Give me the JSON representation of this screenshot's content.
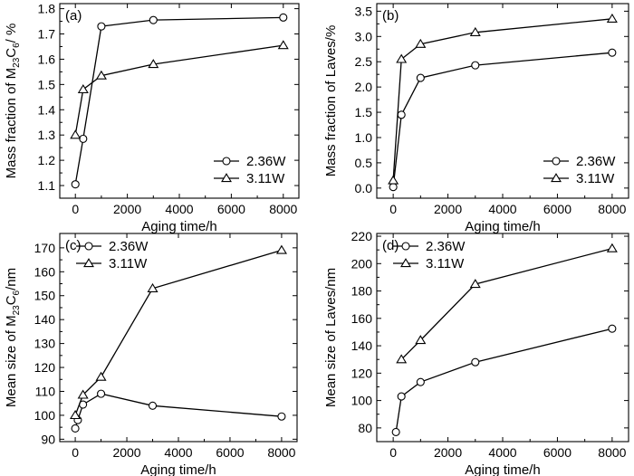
{
  "figure": {
    "chart_data": [
      {
        "type": "line",
        "panel": "(a)",
        "title": "",
        "xlabel": "Aging time/h",
        "ylabel_parts": [
          [
            "Mass fraction of M",
            "n"
          ],
          [
            "23",
            "sub"
          ],
          [
            "C",
            "n"
          ],
          [
            "6",
            "sub"
          ],
          [
            "/ %",
            "n"
          ]
        ],
        "xlim": [
          -600,
          8600
        ],
        "ylim": [
          1.05,
          1.82
        ],
        "xticks": [
          0,
          2000,
          4000,
          6000,
          8000
        ],
        "xtick_labels": [
          "0",
          "2000",
          "4000",
          "6000",
          "8000"
        ],
        "yticks": [
          1.1,
          1.2,
          1.3,
          1.4,
          1.5,
          1.6,
          1.7,
          1.8
        ],
        "ytick_labels": [
          "1.1",
          "1.2",
          "1.3",
          "1.4",
          "1.5",
          "1.6",
          "1.7",
          "1.8"
        ],
        "legend": "bottom-right",
        "series": [
          {
            "name": "2.36W",
            "marker": "circle",
            "x": [
              0,
              300,
              1000,
              3000,
              8000
            ],
            "y": [
              1.105,
              1.285,
              1.73,
              1.755,
              1.765
            ]
          },
          {
            "name": "3.11W",
            "marker": "triangle",
            "x": [
              0,
              300,
              1000,
              3000,
              8000
            ],
            "y": [
              1.3,
              1.48,
              1.535,
              1.58,
              1.655
            ]
          }
        ]
      },
      {
        "type": "line",
        "panel": "(b)",
        "title": "",
        "xlabel": "Aging time/h",
        "ylabel_parts": [
          [
            "Mass fraction of Laves/%",
            "n"
          ]
        ],
        "xlim": [
          -600,
          8600
        ],
        "ylim": [
          -0.2,
          3.65
        ],
        "xticks": [
          0,
          2000,
          4000,
          6000,
          8000
        ],
        "xtick_labels": [
          "0",
          "2000",
          "4000",
          "6000",
          "8000"
        ],
        "yticks": [
          0.0,
          0.5,
          1.0,
          1.5,
          2.0,
          2.5,
          3.0,
          3.5
        ],
        "ytick_labels": [
          "0.0",
          "0.5",
          "1.0",
          "1.5",
          "2.0",
          "2.5",
          "3.0",
          "3.5"
        ],
        "legend": "bottom-right",
        "series": [
          {
            "name": "2.36W",
            "marker": "circle",
            "x": [
              0,
              300,
              1000,
              3000,
              8000
            ],
            "y": [
              0.02,
              1.45,
              2.18,
              2.43,
              2.68
            ]
          },
          {
            "name": "3.11W",
            "marker": "triangle",
            "x": [
              0,
              300,
              1000,
              3000,
              8000
            ],
            "y": [
              0.15,
              2.55,
              2.85,
              3.08,
              3.35
            ]
          }
        ]
      },
      {
        "type": "line",
        "panel": "(c)",
        "title": "",
        "xlabel": "Aging time/h",
        "ylabel_parts": [
          [
            "Mean size of M",
            "n"
          ],
          [
            "23",
            "sub"
          ],
          [
            "C",
            "n"
          ],
          [
            "6",
            "sub"
          ],
          [
            "/nm",
            "n"
          ]
        ],
        "xlim": [
          -600,
          8600
        ],
        "ylim": [
          89,
          176
        ],
        "xticks": [
          0,
          2000,
          4000,
          6000,
          8000
        ],
        "xtick_labels": [
          "0",
          "2000",
          "4000",
          "6000",
          "8000"
        ],
        "yticks": [
          90,
          100,
          110,
          120,
          130,
          140,
          150,
          160,
          170
        ],
        "ytick_labels": [
          "90",
          "100",
          "110",
          "120",
          "130",
          "140",
          "150",
          "160",
          "170"
        ],
        "legend": "top-left",
        "series": [
          {
            "name": "2.36W",
            "marker": "circle",
            "x": [
              0,
              100,
              300,
              1000,
              3000,
              8000
            ],
            "y": [
              94.5,
              98.0,
              104.5,
              109.0,
              104.0,
              99.5
            ]
          },
          {
            "name": "3.11W",
            "marker": "triangle",
            "x": [
              0,
              300,
              1000,
              3000,
              8000
            ],
            "y": [
              100.0,
              108.5,
              116.0,
              153.0,
              169.0
            ]
          }
        ]
      },
      {
        "type": "line",
        "panel": "(d)",
        "title": "",
        "xlabel": "Aging time/h",
        "ylabel_parts": [
          [
            "Mean size of Laves/nm",
            "n"
          ]
        ],
        "xlim": [
          -600,
          8600
        ],
        "ylim": [
          70,
          222
        ],
        "xticks": [
          0,
          2000,
          4000,
          6000,
          8000
        ],
        "xtick_labels": [
          "0",
          "2000",
          "4000",
          "6000",
          "8000"
        ],
        "yticks": [
          80,
          100,
          120,
          140,
          160,
          180,
          200,
          220
        ],
        "ytick_labels": [
          "80",
          "100",
          "120",
          "140",
          "160",
          "180",
          "200",
          "220"
        ],
        "legend": "top-left",
        "series": [
          {
            "name": "2.36W",
            "marker": "circle",
            "x": [
              100,
              300,
              1000,
              3000,
              8000
            ],
            "y": [
              77.0,
              103.0,
              113.5,
              128.0,
              152.5
            ]
          },
          {
            "name": "3.11W",
            "marker": "triangle",
            "x": [
              300,
              1000,
              3000,
              8000
            ],
            "y": [
              130.0,
              144.0,
              185.0,
              211.0
            ]
          }
        ]
      }
    ]
  }
}
